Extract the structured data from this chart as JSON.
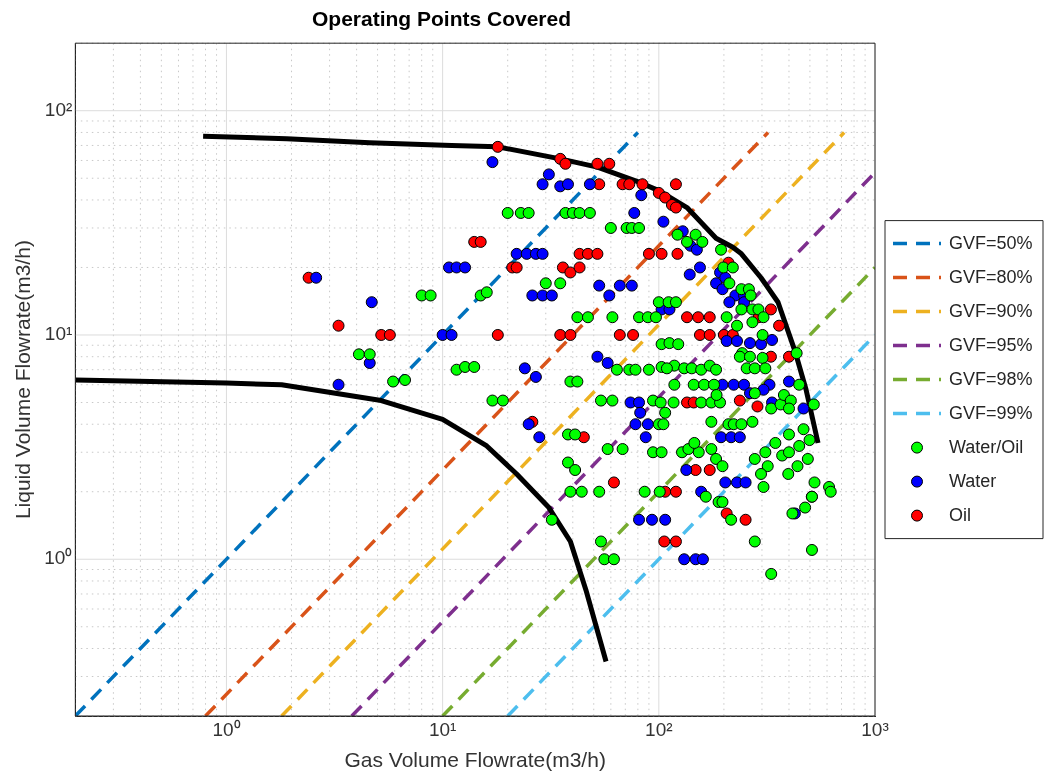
{
  "chart_data": {
    "type": "scatter",
    "title": "Operating Points Covered",
    "xlabel": "Gas Volume Flowrate(m3/h)",
    "ylabel": "Liquid Volume Flowrate(m3/h)",
    "log": "xy",
    "grid": true,
    "legend": "right",
    "xlim": [
      0.2,
      1000
    ],
    "ylim": [
      0.2,
      200
    ],
    "xticks": [
      {
        "value": 0.2,
        "label": null
      },
      {
        "value": 0.3,
        "label": null
      },
      {
        "value": 0.4,
        "label": null
      },
      {
        "value": 0.5,
        "label": null
      },
      {
        "value": 0.6,
        "label": null
      },
      {
        "value": 0.7,
        "label": null
      },
      {
        "value": 0.8,
        "label": null
      },
      {
        "value": 0.9,
        "label": null
      },
      {
        "value": 1,
        "label": "10⁰"
      },
      {
        "value": 2,
        "label": null
      },
      {
        "value": 3,
        "label": null
      },
      {
        "value": 4,
        "label": null
      },
      {
        "value": 5,
        "label": null
      },
      {
        "value": 6,
        "label": null
      },
      {
        "value": 7,
        "label": null
      },
      {
        "value": 8,
        "label": null
      },
      {
        "value": 9,
        "label": null
      },
      {
        "value": 10,
        "label": "10¹"
      },
      {
        "value": 20,
        "label": null
      },
      {
        "value": 30,
        "label": null
      },
      {
        "value": 40,
        "label": null
      },
      {
        "value": 50,
        "label": null
      },
      {
        "value": 60,
        "label": null
      },
      {
        "value": 70,
        "label": null
      },
      {
        "value": 80,
        "label": null
      },
      {
        "value": 90,
        "label": null
      },
      {
        "value": 100,
        "label": "10²"
      },
      {
        "value": 200,
        "label": null
      },
      {
        "value": 300,
        "label": null
      },
      {
        "value": 400,
        "label": null
      },
      {
        "value": 500,
        "label": null
      },
      {
        "value": 600,
        "label": null
      },
      {
        "value": 700,
        "label": null
      },
      {
        "value": 800,
        "label": null
      },
      {
        "value": 900,
        "label": null
      },
      {
        "value": 1000,
        "label": "10³"
      }
    ],
    "yticks": [
      {
        "value": 0.2,
        "label": null
      },
      {
        "value": 0.3,
        "label": null
      },
      {
        "value": 0.4,
        "label": null
      },
      {
        "value": 0.5,
        "label": null
      },
      {
        "value": 0.6,
        "label": null
      },
      {
        "value": 0.7,
        "label": null
      },
      {
        "value": 0.8,
        "label": null
      },
      {
        "value": 0.9,
        "label": null
      },
      {
        "value": 1,
        "label": "10⁰"
      },
      {
        "value": 2,
        "label": null
      },
      {
        "value": 3,
        "label": null
      },
      {
        "value": 4,
        "label": null
      },
      {
        "value": 5,
        "label": null
      },
      {
        "value": 6,
        "label": null
      },
      {
        "value": 7,
        "label": null
      },
      {
        "value": 8,
        "label": null
      },
      {
        "value": 9,
        "label": null
      },
      {
        "value": 10,
        "label": "10¹"
      },
      {
        "value": 20,
        "label": null
      },
      {
        "value": 30,
        "label": null
      },
      {
        "value": 40,
        "label": null
      },
      {
        "value": 50,
        "label": null
      },
      {
        "value": 60,
        "label": null
      },
      {
        "value": 70,
        "label": null
      },
      {
        "value": 80,
        "label": null
      },
      {
        "value": 90,
        "label": null
      },
      {
        "value": 100,
        "label": "10²"
      },
      {
        "value": 200,
        "label": null
      }
    ],
    "series": [
      {
        "type": "line",
        "marker": "none",
        "color": "#000000",
        "line_style": "solid",
        "x": [
          0.78,
          1.9,
          4.6,
          11,
          18,
          35,
          52,
          81,
          100,
          135,
          184,
          220,
          241,
          297,
          356,
          426,
          480,
          545
        ],
        "values": [
          77,
          75,
          72,
          70,
          69,
          61,
          56,
          48,
          44,
          37,
          27,
          24.6,
          23,
          18,
          14,
          8.5,
          5.7,
          3.3
        ]
      },
      {
        "type": "line",
        "marker": "none",
        "color": "#000000",
        "line_style": "solid",
        "x": [
          0.2,
          1,
          1.8,
          5.2,
          10,
          16,
          22,
          24,
          31,
          39,
          46,
          57
        ],
        "values": [
          6.3,
          6.1,
          6.0,
          5.1,
          4.2,
          3.2,
          2.4,
          2.2,
          1.7,
          1.2,
          0.73,
          0.35
        ]
      },
      {
        "type": "line",
        "marker": "none",
        "name": "GVF=50%",
        "color": "#0072bd",
        "line_style": "dashed",
        "x": [
          0.2,
          80
        ],
        "values": [
          0.2,
          80
        ]
      },
      {
        "type": "line",
        "marker": "none",
        "name": "GVF=80%",
        "color": "#d95319",
        "line_style": "dashed",
        "x": [
          0.8,
          320
        ],
        "values": [
          0.2,
          80
        ]
      },
      {
        "type": "line",
        "marker": "none",
        "name": "GVF=90%",
        "color": "#edb120",
        "line_style": "dashed",
        "x": [
          1.8,
          720
        ],
        "values": [
          0.2,
          80
        ]
      },
      {
        "type": "line",
        "marker": "none",
        "name": "GVF=95%",
        "color": "#7e2f8e",
        "line_style": "dashed",
        "x": [
          3.8,
          1000
        ],
        "values": [
          0.2,
          53
        ]
      },
      {
        "type": "line",
        "marker": "none",
        "name": "GVF=98%",
        "color": "#77ac30",
        "line_style": "dashed",
        "x": [
          10,
          1000
        ],
        "values": [
          0.2,
          20
        ]
      },
      {
        "type": "line",
        "marker": "none",
        "name": "GVF=99%",
        "color": "#4dbeee",
        "line_style": "dashed",
        "x": [
          20,
          1000
        ],
        "values": [
          0.2,
          10
        ]
      },
      {
        "marker": "circle",
        "name": "Water/Oil",
        "color": "#00ff00",
        "x": [
          8,
          8.8,
          4.1,
          4.6,
          5.9,
          6.7,
          11.6,
          20,
          23,
          25,
          37,
          40,
          43,
          48,
          60,
          71,
          75,
          81,
          30,
          35,
          15,
          16,
          42,
          47,
          61,
          81,
          89,
          97,
          100,
          103,
          12.7,
          14,
          64,
          73,
          78,
          90,
          17,
          19,
          39,
          42,
          54,
          61,
          38,
          41,
          58,
          68,
          38,
          41,
          39,
          44,
          53,
          86,
          101,
          32,
          54,
          56,
          62,
          94,
          107,
          100,
          94,
          103,
          122,
          135,
          148,
          159,
          194,
          199,
          220,
          212,
          241,
          261,
          266,
          206,
          241,
          271,
          289,
          230,
          271,
          305,
          302,
          434,
          243,
          111,
          120,
          112,
          123,
          118,
          131,
          142,
          157,
          172,
          184,
          118,
          145,
          162,
          180,
          237,
          264,
          302,
          255,
          278,
          311,
          446,
          102,
          117,
          157,
          175,
          192,
          185,
          105,
          175,
          210,
          222,
          241,
          271,
          278,
          331,
          366,
          379,
          408,
          400,
          521,
          128,
          137,
          153,
          175,
          146,
          184,
          197,
          278,
          311,
          319,
          297,
          346,
          400,
          446,
          372,
          400,
          397,
          438,
          489,
          467,
          498,
          305,
          165,
          189,
          197,
          216,
          525,
          613,
          624,
          475,
          511,
          415,
          278,
          511,
          331,
          103,
          109
        ],
        "values": [
          15,
          15,
          8.2,
          8.2,
          6.2,
          6.3,
          7,
          35,
          35,
          35,
          35,
          35,
          35,
          35,
          30,
          30,
          30,
          30,
          17,
          17,
          15,
          15.5,
          12,
          12,
          12,
          12,
          12,
          12,
          14,
          9.1,
          7.2,
          7.2,
          7,
          7,
          7,
          7,
          5.1,
          5.1,
          6.2,
          6.2,
          5.1,
          5.1,
          3.6,
          3.6,
          3.1,
          3.1,
          2.7,
          2.5,
          2,
          2,
          2,
          2,
          2,
          1.5,
          1.2,
          1.0,
          1.0,
          5.1,
          4.5,
          4,
          3,
          3,
          28,
          26,
          28,
          26,
          24,
          20,
          20,
          17,
          16,
          16,
          15,
          12,
          13,
          13,
          13,
          11,
          11.4,
          12,
          10,
          8.3,
          8.3,
          14,
          14,
          9.2,
          9.1,
          7.3,
          7.1,
          7.1,
          7,
          7.3,
          7,
          6,
          6,
          6,
          6,
          8,
          8,
          7.9,
          7.1,
          7.1,
          7.1,
          6,
          5,
          5,
          5,
          5,
          5,
          5.4,
          4,
          4.1,
          4,
          4,
          4,
          4.1,
          5.5,
          4.7,
          4.9,
          5.4,
          5.1,
          4.7,
          4.9,
          3,
          3.1,
          3,
          3.1,
          3.3,
          2.8,
          2.6,
          2.8,
          3,
          2.6,
          2.4,
          3.3,
          3.6,
          3.2,
          2.9,
          3.0,
          2.4,
          2.6,
          2.8,
          3.8,
          3.4,
          2.1,
          1.9,
          1.8,
          1.8,
          1.5,
          2.2,
          2.1,
          2.0,
          1.7,
          1.9,
          1.6,
          1.2,
          1.1,
          0.86,
          7.2,
          7.1
        ]
      },
      {
        "marker": "circle",
        "name": "Water",
        "color": "#0000ff",
        "x": [
          2.6,
          4.7,
          4.6,
          3.3,
          10,
          11,
          10.7,
          11.6,
          17,
          31,
          29,
          35,
          38,
          48,
          83,
          77,
          105,
          22,
          24.5,
          27,
          29,
          12.7,
          26,
          29,
          32,
          53,
          59,
          66,
          75,
          52,
          58,
          24,
          27,
          25,
          28,
          74,
          81,
          82,
          78,
          89,
          87,
          81,
          93,
          107,
          129,
          140,
          150,
          155,
          139,
          184,
          192,
          203,
          197,
          226,
          248,
          212,
          248,
          206,
          230,
          264,
          297,
          334,
          103,
          112,
          197,
          222,
          248,
          325,
          400,
          264,
          305,
          334,
          467,
          194,
          216,
          237,
          134,
          203,
          230,
          252,
          157,
          131,
          148,
          160,
          426
        ],
        "values": [
          18,
          14,
          7.5,
          6,
          10,
          10,
          20,
          20,
          59,
          52,
          47,
          46,
          47,
          47,
          42,
          35,
          32,
          23,
          23,
          23,
          23,
          20,
          15,
          15,
          15,
          16.6,
          15,
          16.6,
          16.6,
          8,
          7.5,
          7.1,
          6.5,
          4,
          3.5,
          5,
          5,
          4.5,
          4,
          4,
          3.5,
          1.5,
          1.5,
          1.5,
          29,
          25,
          24,
          20,
          18.6,
          17,
          19,
          18,
          16,
          15,
          15,
          14,
          14,
          9.4,
          9.4,
          9.2,
          9.1,
          9.5,
          13,
          13,
          6,
          6,
          6,
          6,
          6.2,
          5.5,
          5.7,
          5,
          4.7,
          3.5,
          3.5,
          3.5,
          2.5,
          2.2,
          2.2,
          2.2,
          2,
          1.0,
          1.0,
          1.0,
          1.6
        ]
      },
      {
        "marker": "circle",
        "name": "Oil",
        "color": "#ff0000",
        "x": [
          2.4,
          3.3,
          5.2,
          5.7,
          18,
          14,
          15,
          21,
          22,
          18,
          35,
          37,
          52,
          59,
          53,
          68,
          73,
          84,
          100,
          107,
          120,
          115,
          120,
          43,
          47,
          52,
          36,
          39,
          43,
          90,
          103,
          35,
          39,
          66,
          76,
          122,
          135,
          152,
          172,
          155,
          172,
          200,
          220,
          210,
          290,
          330,
          360,
          330,
          400,
          26,
          45,
          62,
          106,
          120,
          135,
          145,
          237,
          286,
          107,
          120,
          172,
          148,
          206,
          252,
          510
        ],
        "values": [
          18,
          11,
          10,
          10,
          69,
          26,
          26,
          20,
          20,
          10,
          61,
          58,
          58,
          58,
          47,
          47,
          47,
          47,
          43,
          41,
          47,
          38,
          37,
          23,
          23,
          23,
          20,
          19,
          20,
          23,
          23,
          10,
          10,
          10,
          10,
          23,
          12,
          12,
          12,
          10,
          10,
          10,
          10,
          21,
          12,
          13,
          11,
          8,
          8,
          4.1,
          3.5,
          2.2,
          1.2,
          1.2,
          5,
          5,
          5.1,
          4.8,
          2,
          2,
          2.5,
          2.5,
          1.6,
          1.5,
          1.9
        ]
      }
    ]
  }
}
